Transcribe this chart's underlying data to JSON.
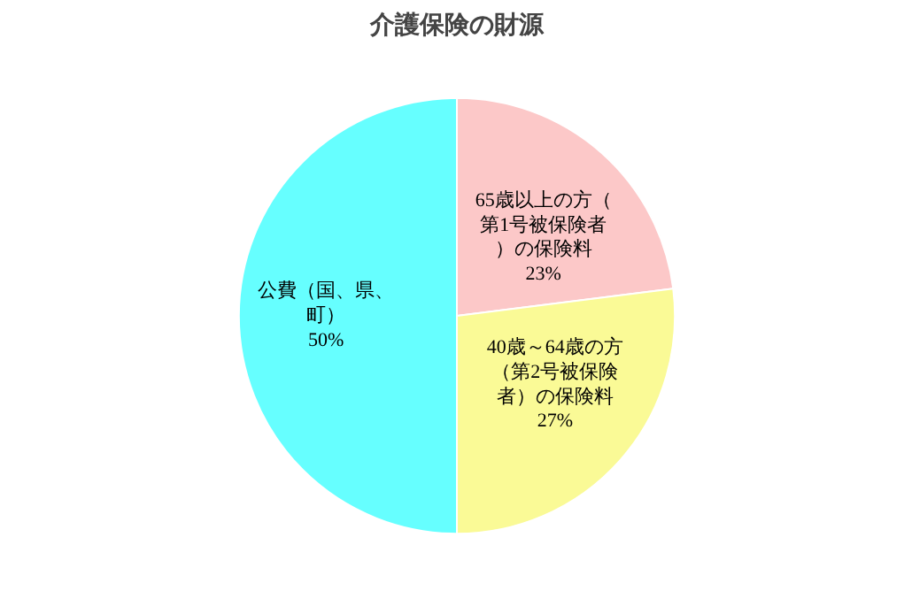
{
  "chart_data": {
    "type": "pie",
    "title": "介護保険の財源",
    "categories": [
      "65歳以上の方（第1号被保険者）の保険料",
      "40歳～64歳の方（第2号被保険者）の保険料",
      "公費（国、県、町）"
    ],
    "values": [
      23,
      27,
      50
    ],
    "colors": [
      "#fcc8c8",
      "#fafa96",
      "#66ffff"
    ],
    "value_labels": [
      "23%",
      "27%",
      "50%"
    ]
  }
}
